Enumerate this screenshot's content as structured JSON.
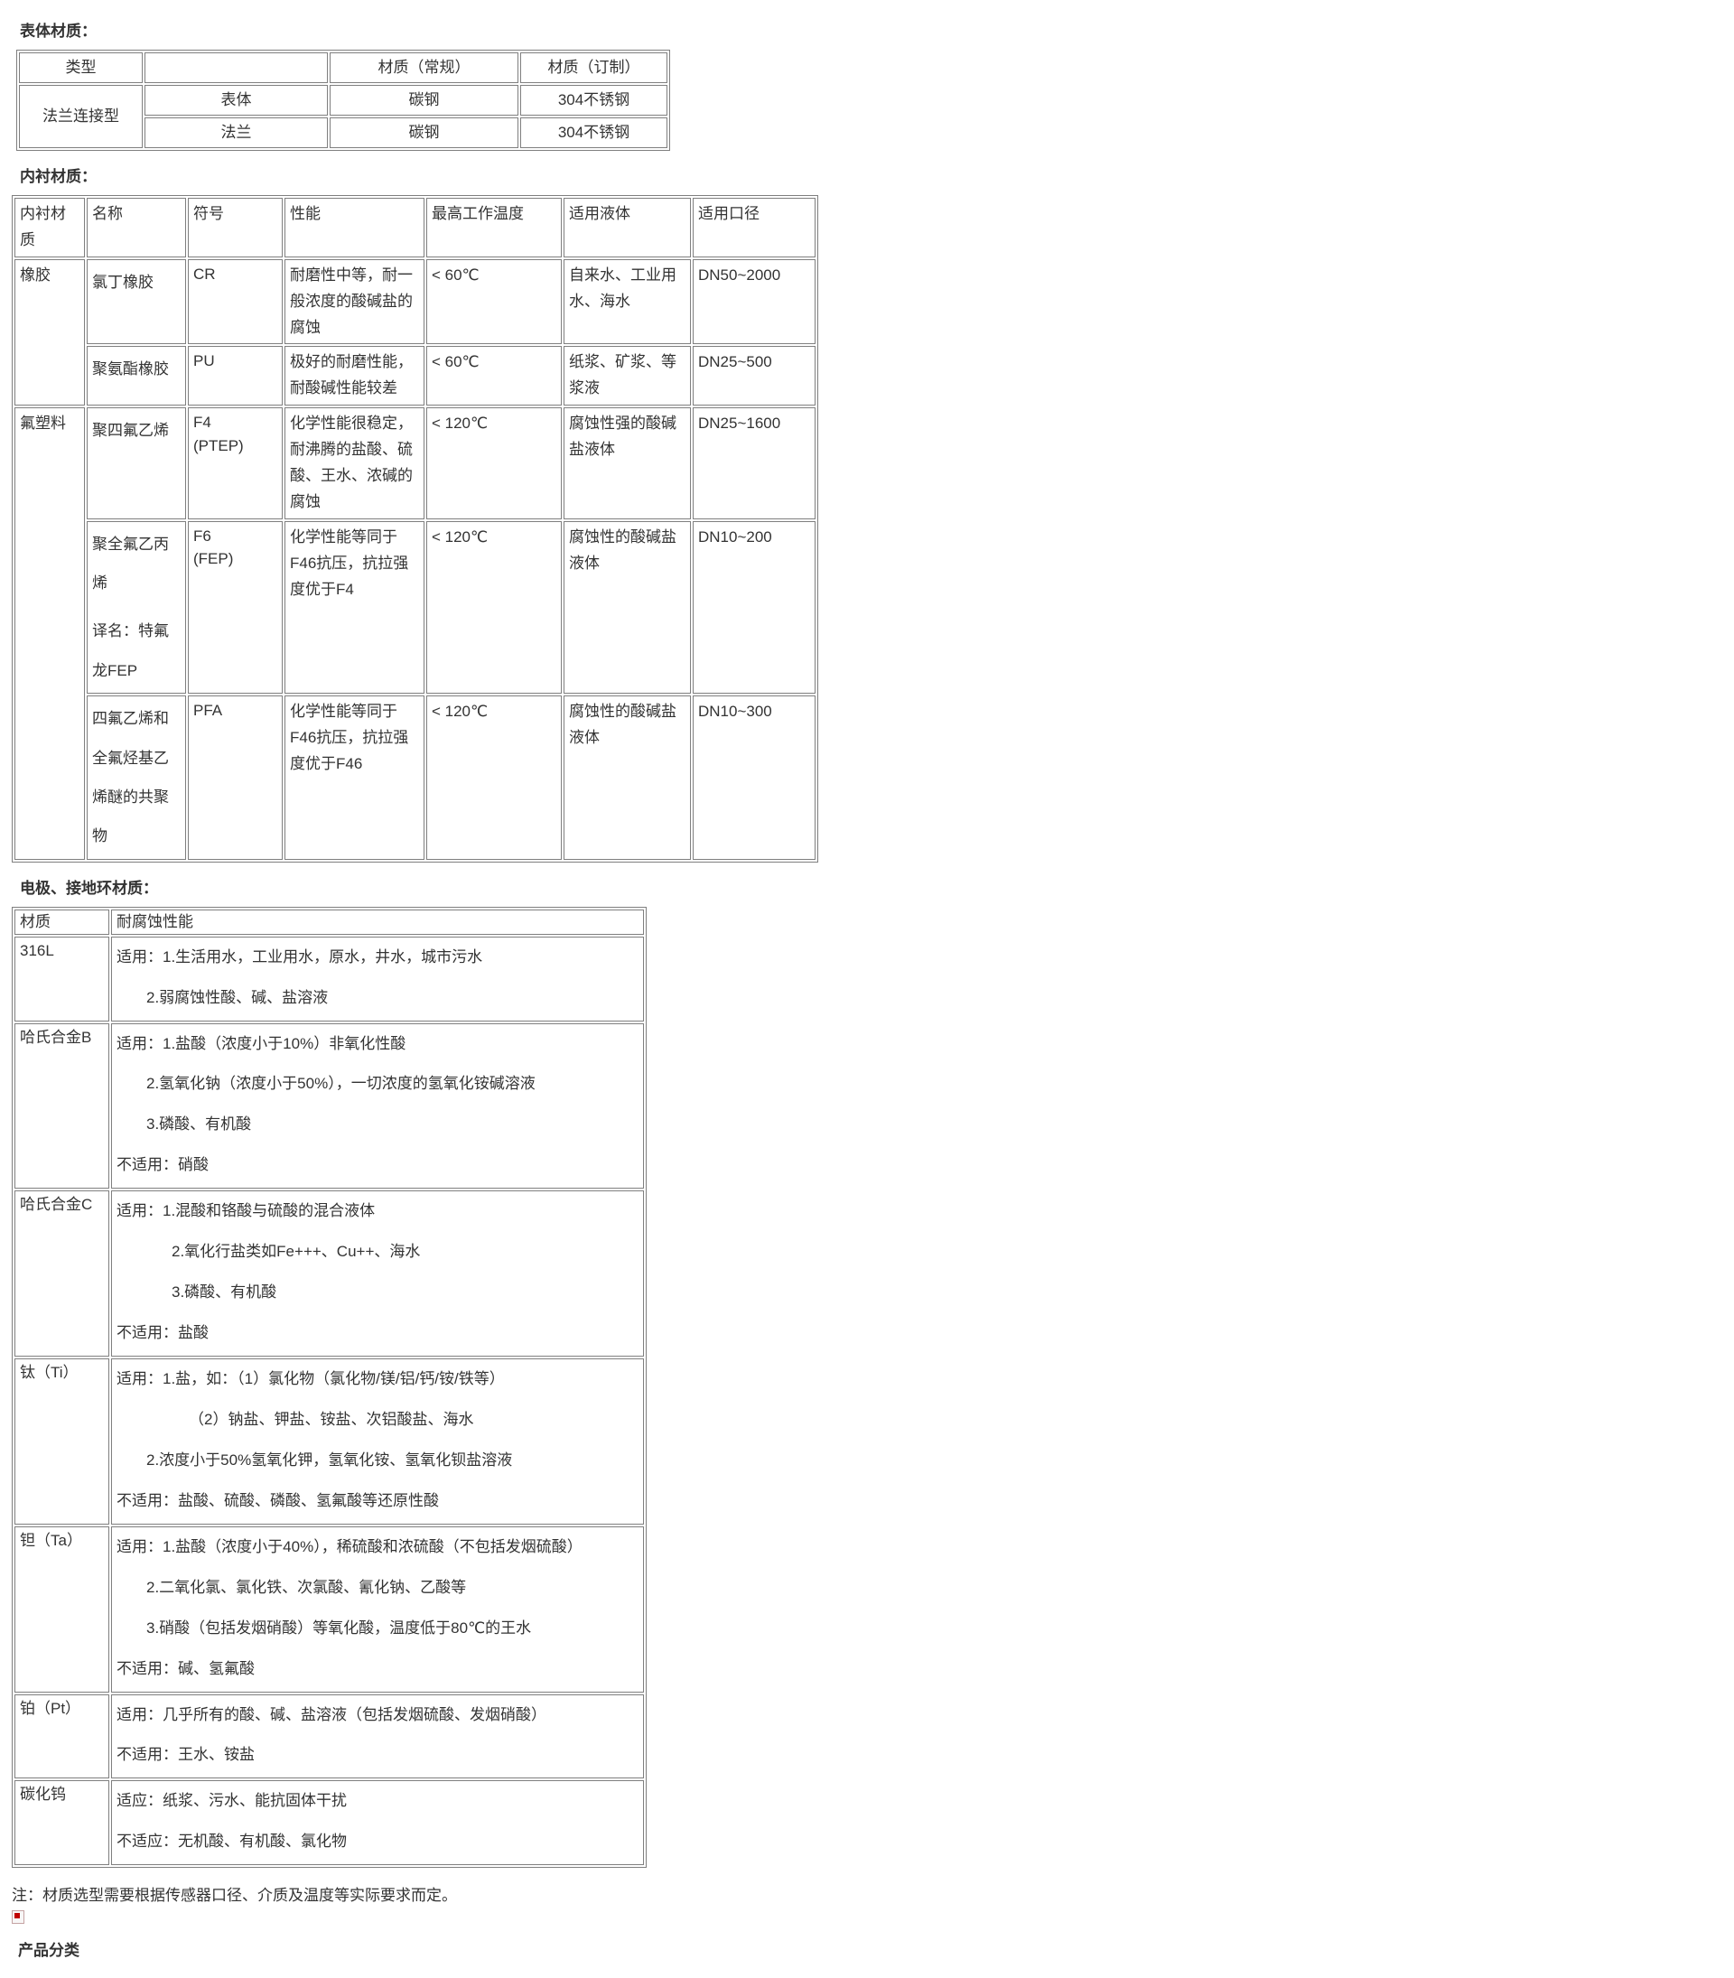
{
  "colors": {
    "border": "#7f7f7f",
    "text": "#333333",
    "broken_icon_red": "#c00000"
  },
  "sections": {
    "body_material_title": "表体材质：",
    "lining_material_title": "内衬材质：",
    "electrode_material_title": "电极、接地环材质："
  },
  "body_table": {
    "headers": [
      "类型",
      "",
      "材质（常规）",
      "材质（订制）"
    ],
    "group_label": "法兰连接型",
    "rows": [
      {
        "part": "表体",
        "standard": "碳钢",
        "custom": "304不锈钢"
      },
      {
        "part": "法兰",
        "standard": "碳钢",
        "custom": "304不锈钢"
      }
    ]
  },
  "lining_table": {
    "headers": [
      "内衬材质",
      "名称",
      "符号",
      "性能",
      "最高工作温度",
      "适用液体",
      "适用口径"
    ],
    "groups": [
      {
        "material": "橡胶",
        "rows": [
          {
            "name_lines": [
              "氯丁橡胶"
            ],
            "symbol_lines": [
              "CR"
            ],
            "performance": "耐磨性中等，耐一般浓度的酸碱盐的腐蚀",
            "max_temp": "< 60℃",
            "liquids": "自来水、工业用水、海水",
            "bore_range": "DN50~2000"
          },
          {
            "name_lines": [
              "聚氨酯橡胶"
            ],
            "symbol_lines": [
              "PU"
            ],
            "performance": "极好的耐磨性能，耐酸碱性能较差",
            "max_temp": "< 60℃",
            "liquids": "纸浆、矿浆、等浆液",
            "bore_range": "DN25~500"
          }
        ]
      },
      {
        "material": "氟塑料",
        "rows": [
          {
            "name_lines": [
              "聚四氟乙烯"
            ],
            "symbol_lines": [
              "F4",
              "(PTEP)"
            ],
            "performance": "化学性能很稳定，耐沸腾的盐酸、硫酸、王水、浓碱的腐蚀",
            "max_temp": "< 120℃",
            "liquids": "腐蚀性强的酸碱盐液体",
            "bore_range": "DN25~1600"
          },
          {
            "name_lines": [
              "聚全氟乙丙烯",
              "译名：特氟龙FEP"
            ],
            "symbol_lines": [
              "F6",
              "(FEP)"
            ],
            "performance": "化学性能等同于F46抗压，抗拉强度优于F4",
            "max_temp": "< 120℃",
            "liquids": "腐蚀性的酸碱盐液体",
            "bore_range": "DN10~200"
          },
          {
            "name_lines": [
              "四氟乙烯和全氟烃基乙烯醚的共聚物"
            ],
            "symbol_lines": [
              "PFA"
            ],
            "performance": "化学性能等同于F46抗压，抗拉强度优于F46",
            "max_temp": "< 120℃",
            "liquids": "腐蚀性的酸碱盐液体",
            "bore_range": "DN10~300"
          }
        ]
      }
    ]
  },
  "electrode_table": {
    "headers": [
      "材质",
      "耐腐蚀性能"
    ],
    "rows": [
      {
        "material": "316L",
        "lines": [
          "适用：1.生活用水，工业用水，原水，井水，城市污水",
          "2.弱腐蚀性酸、碱、盐溶液"
        ]
      },
      {
        "material": "哈氏合金B",
        "lines": [
          "适用：1.盐酸（浓度小于10%）非氧化性酸",
          "2.氢氧化钠（浓度小于50%），一切浓度的氢氧化铵碱溶液",
          "3.磷酸、有机酸",
          "不适用：硝酸"
        ]
      },
      {
        "material": "哈氏合金C",
        "lines": [
          "适用：1.混酸和铬酸与硫酸的混合液体",
          "2.氧化行盐类如Fe+++、Cu++、海水",
          "3.磷酸、有机酸",
          "不适用：盐酸"
        ]
      },
      {
        "material": "钛（Ti）",
        "lines": [
          "适用：1.盐，如：（1）氯化物（氯化物/镁/铝/钙/铵/铁等）",
          "（2）钠盐、钾盐、铵盐、次铝酸盐、海水",
          "2.浓度小于50%氢氧化钾，氢氧化铵、氢氧化钡盐溶液",
          "不适用：盐酸、硫酸、磷酸、氢氟酸等还原性酸"
        ]
      },
      {
        "material": "钽（Ta）",
        "lines": [
          "适用：1.盐酸（浓度小于40%），稀硫酸和浓硫酸（不包括发烟硫酸）",
          "2.二氧化氯、氯化铁、次氯酸、氰化钠、乙酸等",
          "3.硝酸（包括发烟硝酸）等氧化酸，温度低于80℃的王水",
          "不适用：碱、氢氟酸"
        ]
      },
      {
        "material": "铂（Pt）",
        "lines": [
          "适用：几乎所有的酸、碱、盐溶液（包括发烟硫酸、发烟硝酸）",
          "不适用：王水、铵盐"
        ]
      },
      {
        "material": "碳化钨",
        "lines": [
          "适应：纸浆、污水、能抗固体干扰",
          "不适应：无机酸、有机酸、氯化物"
        ]
      }
    ]
  },
  "footer": {
    "note": "注：材质选型需要根据传感器口径、介质及温度等实际要求而定。",
    "broken_image_icon": "broken-image-placeholder",
    "product_section_title": "产品分类"
  }
}
